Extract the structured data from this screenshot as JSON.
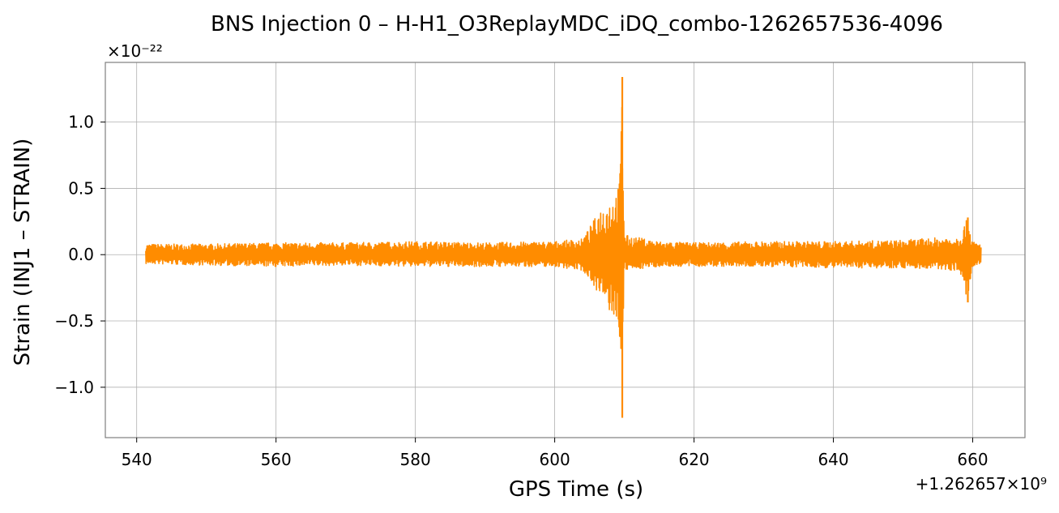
{
  "chart_data": {
    "type": "line",
    "title": "BNS Injection 0 – H-H1_O3ReplayMDC_iDQ_combo-1262657536-4096",
    "xlabel": "GPS Time (s)",
    "ylabel": "Strain (INJ1 – STRAIN)",
    "x_offset_label": "+1.262657×10⁹",
    "y_scale_label": "×10⁻²²",
    "xlim": [
      535.5,
      667.5
    ],
    "ylim": [
      -1.38,
      1.45
    ],
    "x_ticks": [
      540,
      560,
      580,
      600,
      620,
      640,
      660
    ],
    "x_tick_labels": [
      "540",
      "560",
      "580",
      "600",
      "620",
      "640",
      "660"
    ],
    "y_ticks": [
      -1.0,
      -0.5,
      0.0,
      0.5,
      1.0
    ],
    "y_tick_labels": [
      "−1.0",
      "−0.5",
      "0.0",
      "0.5",
      "1.0"
    ],
    "grid": true,
    "color": "#ff8c00",
    "series": [
      {
        "name": "",
        "x_start": 541.3,
        "x_end": 661.2,
        "envelope": [
          {
            "x": 541.3,
            "max": 0.08,
            "min": -0.07
          },
          {
            "x": 550,
            "max": 0.08,
            "min": -0.08
          },
          {
            "x": 560,
            "max": 0.09,
            "min": -0.09
          },
          {
            "x": 570,
            "max": 0.09,
            "min": -0.08
          },
          {
            "x": 580,
            "max": 0.1,
            "min": -0.09
          },
          {
            "x": 590,
            "max": 0.09,
            "min": -0.09
          },
          {
            "x": 600,
            "max": 0.1,
            "min": -0.09
          },
          {
            "x": 604,
            "max": 0.12,
            "min": -0.12
          },
          {
            "x": 605.5,
            "max": 0.25,
            "min": -0.22
          },
          {
            "x": 606.5,
            "max": 0.35,
            "min": -0.32
          },
          {
            "x": 607.5,
            "max": 0.4,
            "min": -0.4
          },
          {
            "x": 608.5,
            "max": 0.45,
            "min": -0.5
          },
          {
            "x": 609.3,
            "max": 0.55,
            "min": -0.6
          },
          {
            "x": 609.7,
            "max": 1.34,
            "min": -1.23
          },
          {
            "x": 610.0,
            "max": 0.15,
            "min": -0.12
          },
          {
            "x": 615,
            "max": 0.1,
            "min": -0.09
          },
          {
            "x": 620,
            "max": 0.09,
            "min": -0.09
          },
          {
            "x": 630,
            "max": 0.1,
            "min": -0.09
          },
          {
            "x": 640,
            "max": 0.1,
            "min": -0.1
          },
          {
            "x": 650,
            "max": 0.11,
            "min": -0.1
          },
          {
            "x": 658,
            "max": 0.14,
            "min": -0.12
          },
          {
            "x": 659.3,
            "max": 0.28,
            "min": -0.36
          },
          {
            "x": 660,
            "max": 0.1,
            "min": -0.1
          },
          {
            "x": 661.2,
            "max": 0.08,
            "min": -0.08
          }
        ]
      }
    ]
  }
}
